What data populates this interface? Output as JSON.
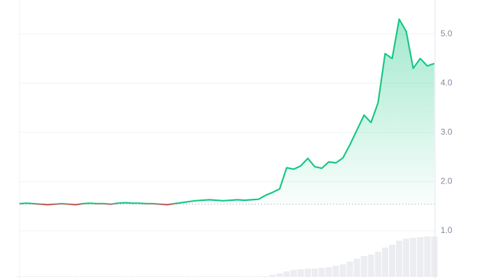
{
  "chart_data": {
    "type": "line",
    "series": [
      {
        "name": "Price",
        "color": "#16c784",
        "down_color": "#ea3943",
        "values": [
          1.55,
          1.56,
          1.55,
          1.54,
          1.53,
          1.54,
          1.55,
          1.54,
          1.53,
          1.55,
          1.56,
          1.55,
          1.55,
          1.54,
          1.56,
          1.57,
          1.56,
          1.56,
          1.55,
          1.55,
          1.54,
          1.53,
          1.55,
          1.57,
          1.59,
          1.61,
          1.62,
          1.63,
          1.62,
          1.61,
          1.62,
          1.63,
          1.62,
          1.63,
          1.64,
          1.72,
          1.78,
          1.85,
          2.28,
          2.25,
          2.32,
          2.47,
          2.3,
          2.27,
          2.4,
          2.38,
          2.48,
          2.75,
          3.05,
          3.35,
          3.2,
          3.6,
          4.6,
          4.5,
          5.3,
          5.05,
          4.3,
          4.5,
          4.35,
          4.4
        ]
      }
    ],
    "volume": [
      1,
      1,
      1,
      1,
      1,
      1,
      1,
      1,
      1,
      1,
      1,
      1,
      1,
      1,
      1,
      1,
      1,
      1,
      1,
      1,
      1,
      1,
      1,
      1,
      1,
      1,
      1,
      1,
      1,
      1,
      1,
      1,
      1,
      1,
      1,
      1,
      3,
      5,
      8,
      10,
      11,
      12,
      12,
      13,
      14,
      16,
      18,
      22,
      26,
      30,
      32,
      36,
      42,
      46,
      52,
      55,
      56,
      57,
      58,
      58
    ],
    "baseline": 1.54,
    "ylim": [
      0.09,
      5.69
    ],
    "yticks": [
      {
        "value": 1,
        "label": "1.0"
      },
      {
        "value": 2,
        "label": "2.0"
      },
      {
        "value": 3,
        "label": "3.0"
      },
      {
        "value": 4,
        "label": "4.0"
      },
      {
        "value": 5,
        "label": "5.0"
      }
    ],
    "grid": true
  }
}
